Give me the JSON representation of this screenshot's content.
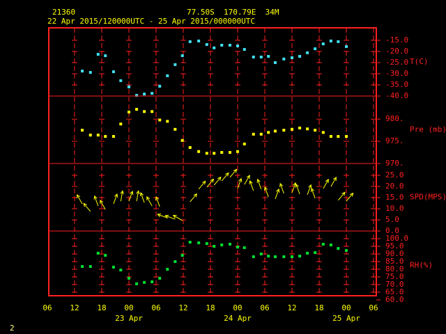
{
  "header": {
    "station": "21360",
    "location": "77.50S  170.79E  34M",
    "period": "22 Apr 2015/120000UTC - 25 Apr 2015/000000UTC"
  },
  "footer": "2",
  "chart_data": {
    "type": "meteogram",
    "x": [
      7.7,
      9.5,
      11.2,
      12.8,
      14.6,
      16.2,
      18.0,
      19.7,
      21.4,
      23.1,
      24.8,
      26.5,
      28.2,
      29.8,
      31.5,
      33.4,
      35.2,
      36.8,
      38.5,
      40.3,
      42.0,
      43.5,
      45.5,
      47.2,
      48.8,
      50.3,
      52.2,
      54.0,
      55.7,
      57.4,
      59.1,
      60.9,
      62.6,
      64.2,
      66.0
    ],
    "xlim": [
      0,
      72
    ],
    "xticks": [
      {
        "value": 0,
        "label": "06"
      },
      {
        "value": 6,
        "label": "12"
      },
      {
        "value": 12,
        "label": "18"
      },
      {
        "value": 18,
        "label": "00"
      },
      {
        "value": 24,
        "label": "06"
      },
      {
        "value": 30,
        "label": "12"
      },
      {
        "value": 36,
        "label": "18"
      },
      {
        "value": 42,
        "label": "00"
      },
      {
        "value": 48,
        "label": "06"
      },
      {
        "value": 54,
        "label": "12"
      },
      {
        "value": 60,
        "label": "18"
      },
      {
        "value": 66,
        "label": "00"
      },
      {
        "value": 72,
        "label": "06"
      }
    ],
    "date_ticks": [
      {
        "value": 18,
        "label": "23 Apr"
      },
      {
        "value": 42,
        "label": "24 Apr"
      },
      {
        "value": 66,
        "label": "25 Apr"
      }
    ],
    "panels": [
      {
        "type": "scatter",
        "ylim": [
          -40,
          -9.4
        ],
        "yticks": [
          {
            "value": -15,
            "label": "-15.0"
          },
          {
            "value": -20,
            "label": "-20.0"
          },
          {
            "value": -25,
            "label": "-25.0"
          },
          {
            "value": -30,
            "label": "-30.0"
          },
          {
            "value": -35,
            "label": "-35.0"
          },
          {
            "value": -40,
            "label": "-40.0"
          }
        ],
        "series": [
          {
            "name": "T(C)",
            "color": "#40e0f0",
            "values": [
              -28.8,
              -29.4,
              -21.3,
              -21.9,
              -29.1,
              -33.1,
              -35.9,
              -39.7,
              -39.1,
              -38.8,
              -35.6,
              -30.9,
              -25.9,
              -21.9,
              -15.6,
              -15.3,
              -16.9,
              -18.4,
              -17.2,
              -17.2,
              -17.5,
              -19.1,
              -22.5,
              -22.5,
              -22.2,
              -25.0,
              -23.4,
              -22.8,
              -22.2,
              -20.6,
              -18.8,
              -16.6,
              -15.3,
              -15.6,
              -17.8
            ]
          }
        ]
      },
      {
        "type": "scatter",
        "ylim": [
          970,
          985.2
        ],
        "yticks": [
          {
            "value": 980,
            "label": "980."
          },
          {
            "value": 975,
            "label": "975."
          },
          {
            "value": 970,
            "label": "970."
          }
        ],
        "series": [
          {
            "name": "Pre (mb)",
            "color": "#ffff00",
            "values": [
              977.5,
              976.4,
              976.4,
              976.1,
              976.1,
              978.9,
              981.6,
              982.2,
              981.7,
              981.7,
              979.8,
              979.5,
              977.7,
              975.2,
              973.6,
              972.7,
              972.3,
              972.3,
              972.5,
              972.5,
              972.7,
              974.4,
              976.6,
              976.6,
              977.0,
              977.3,
              977.5,
              977.7,
              978.0,
              977.8,
              977.5,
              977.0,
              976.1,
              976.1,
              976.1
            ]
          }
        ]
      },
      {
        "type": "wind",
        "ylim": [
          0,
          30.3
        ],
        "yticks": [
          {
            "value": 25,
            "label": "25.0"
          },
          {
            "value": 20,
            "label": "20.0"
          },
          {
            "value": 15,
            "label": "15.0"
          },
          {
            "value": 10,
            "label": "10.0"
          },
          {
            "value": 5,
            "label": "5.0"
          },
          {
            "value": 0,
            "label": "0.0"
          }
        ],
        "series": [
          {
            "name": "SPD(MPS)",
            "color": "#ffff00",
            "values": [
              12.2,
              8.8,
              11.3,
              9.7,
              12.2,
              13.4,
              13.4,
              13.4,
              12.8,
              11.3,
              10.9,
              5.9,
              5.3,
              4.7,
              13.1,
              18.8,
              19.7,
              20.6,
              22.5,
              24.1,
              19.1,
              20.9,
              18.1,
              18.8,
              15.3,
              14.4,
              16.9,
              17.2,
              16.6,
              16.3,
              14.7,
              19.1,
              20.0,
              13.8,
              13.4
            ],
            "directions": [
              330,
              320,
              340,
              330,
              20,
              10,
              20,
              10,
              340,
              330,
              340,
              290,
              290,
              300,
              40,
              40,
              40,
              40,
              40,
              40,
              20,
              30,
              340,
              340,
              340,
              20,
              340,
              20,
              340,
              20,
              340,
              30,
              30,
              40,
              40
            ]
          }
        ]
      },
      {
        "type": "scatter",
        "ylim": [
          62.7,
          105
        ],
        "yticks": [
          {
            "value": 100,
            "label": "100.0"
          },
          {
            "value": 95,
            "label": "95.0"
          },
          {
            "value": 90,
            "label": "90.0"
          },
          {
            "value": 85,
            "label": "85.0"
          },
          {
            "value": 80,
            "label": "80.0"
          },
          {
            "value": 75,
            "label": "75.0"
          },
          {
            "value": 70,
            "label": "70.0"
          },
          {
            "value": 65,
            "label": "65.0"
          },
          {
            "value": 60,
            "label": "60.0"
          }
        ],
        "series": [
          {
            "name": "RH(%)",
            "color": "#00e030",
            "values": [
              81.8,
              81.8,
              90.5,
              89.1,
              81.4,
              79.5,
              74.1,
              70.5,
              71.4,
              71.8,
              74.1,
              80.0,
              85.0,
              89.1,
              97.7,
              97.3,
              96.8,
              95.0,
              95.9,
              96.4,
              94.5,
              94.1,
              88.2,
              90.0,
              88.6,
              88.2,
              88.2,
              88.2,
              88.6,
              90.5,
              90.9,
              96.4,
              95.9,
              93.6,
              92.3
            ]
          }
        ]
      }
    ]
  }
}
